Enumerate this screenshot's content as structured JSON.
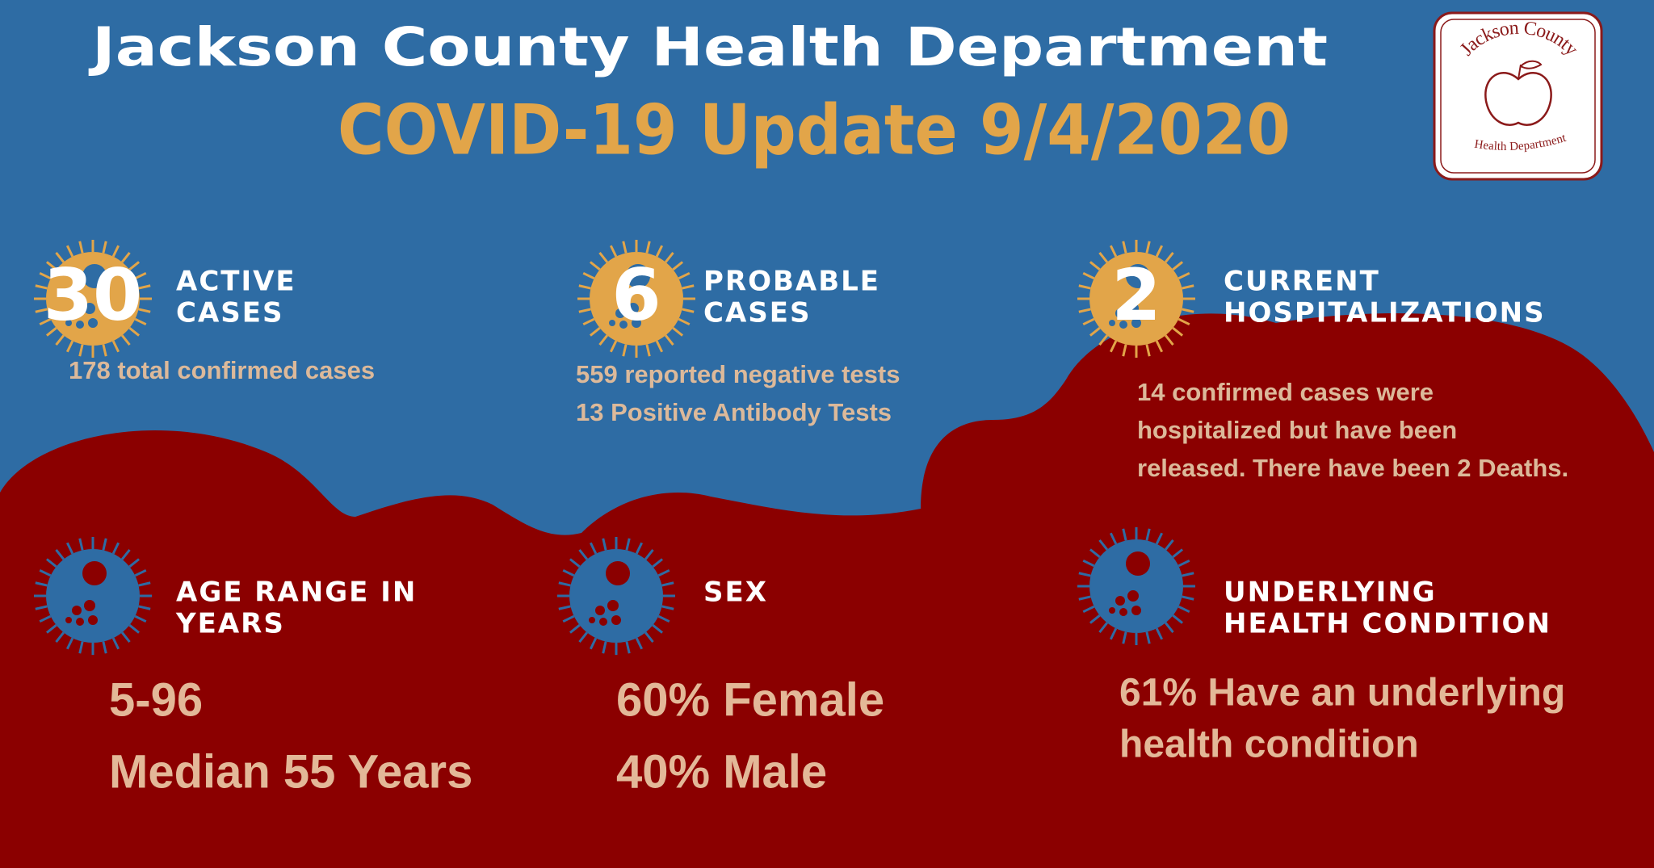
{
  "header": {
    "title": "Jackson County Health Department",
    "subtitle": "COVID-19 Update 9/4/2020"
  },
  "logo": {
    "top": "Jackson County",
    "bottom": "Health Department"
  },
  "stats": [
    {
      "number": 30,
      "label": [
        "ACTIVE",
        "CASES"
      ],
      "details": [
        "178 total confirmed cases"
      ]
    },
    {
      "number": 6,
      "label": [
        "PROBABLE",
        "CASES"
      ],
      "details": [
        "559 reported negative tests",
        "13 Positive Antibody Tests"
      ]
    },
    {
      "number": 2,
      "label": [
        "CURRENT",
        "HOSPITALIZATIONS"
      ],
      "details": [
        "14 confirmed cases were",
        "hospitalized but have been",
        "released. There have been 2 Deaths."
      ]
    }
  ],
  "demographics": [
    {
      "heading": [
        "AGE RANGE IN",
        "YEARS"
      ],
      "details": [
        "5-96",
        "Median 55 Years"
      ]
    },
    {
      "heading": [
        "SEX"
      ],
      "details": [
        "60% Female",
        "40% Male"
      ]
    },
    {
      "heading": [
        "UNDERLYING",
        "HEALTH CONDITION"
      ],
      "details": [
        "61% Have an underlying",
        "health condition"
      ]
    }
  ]
}
